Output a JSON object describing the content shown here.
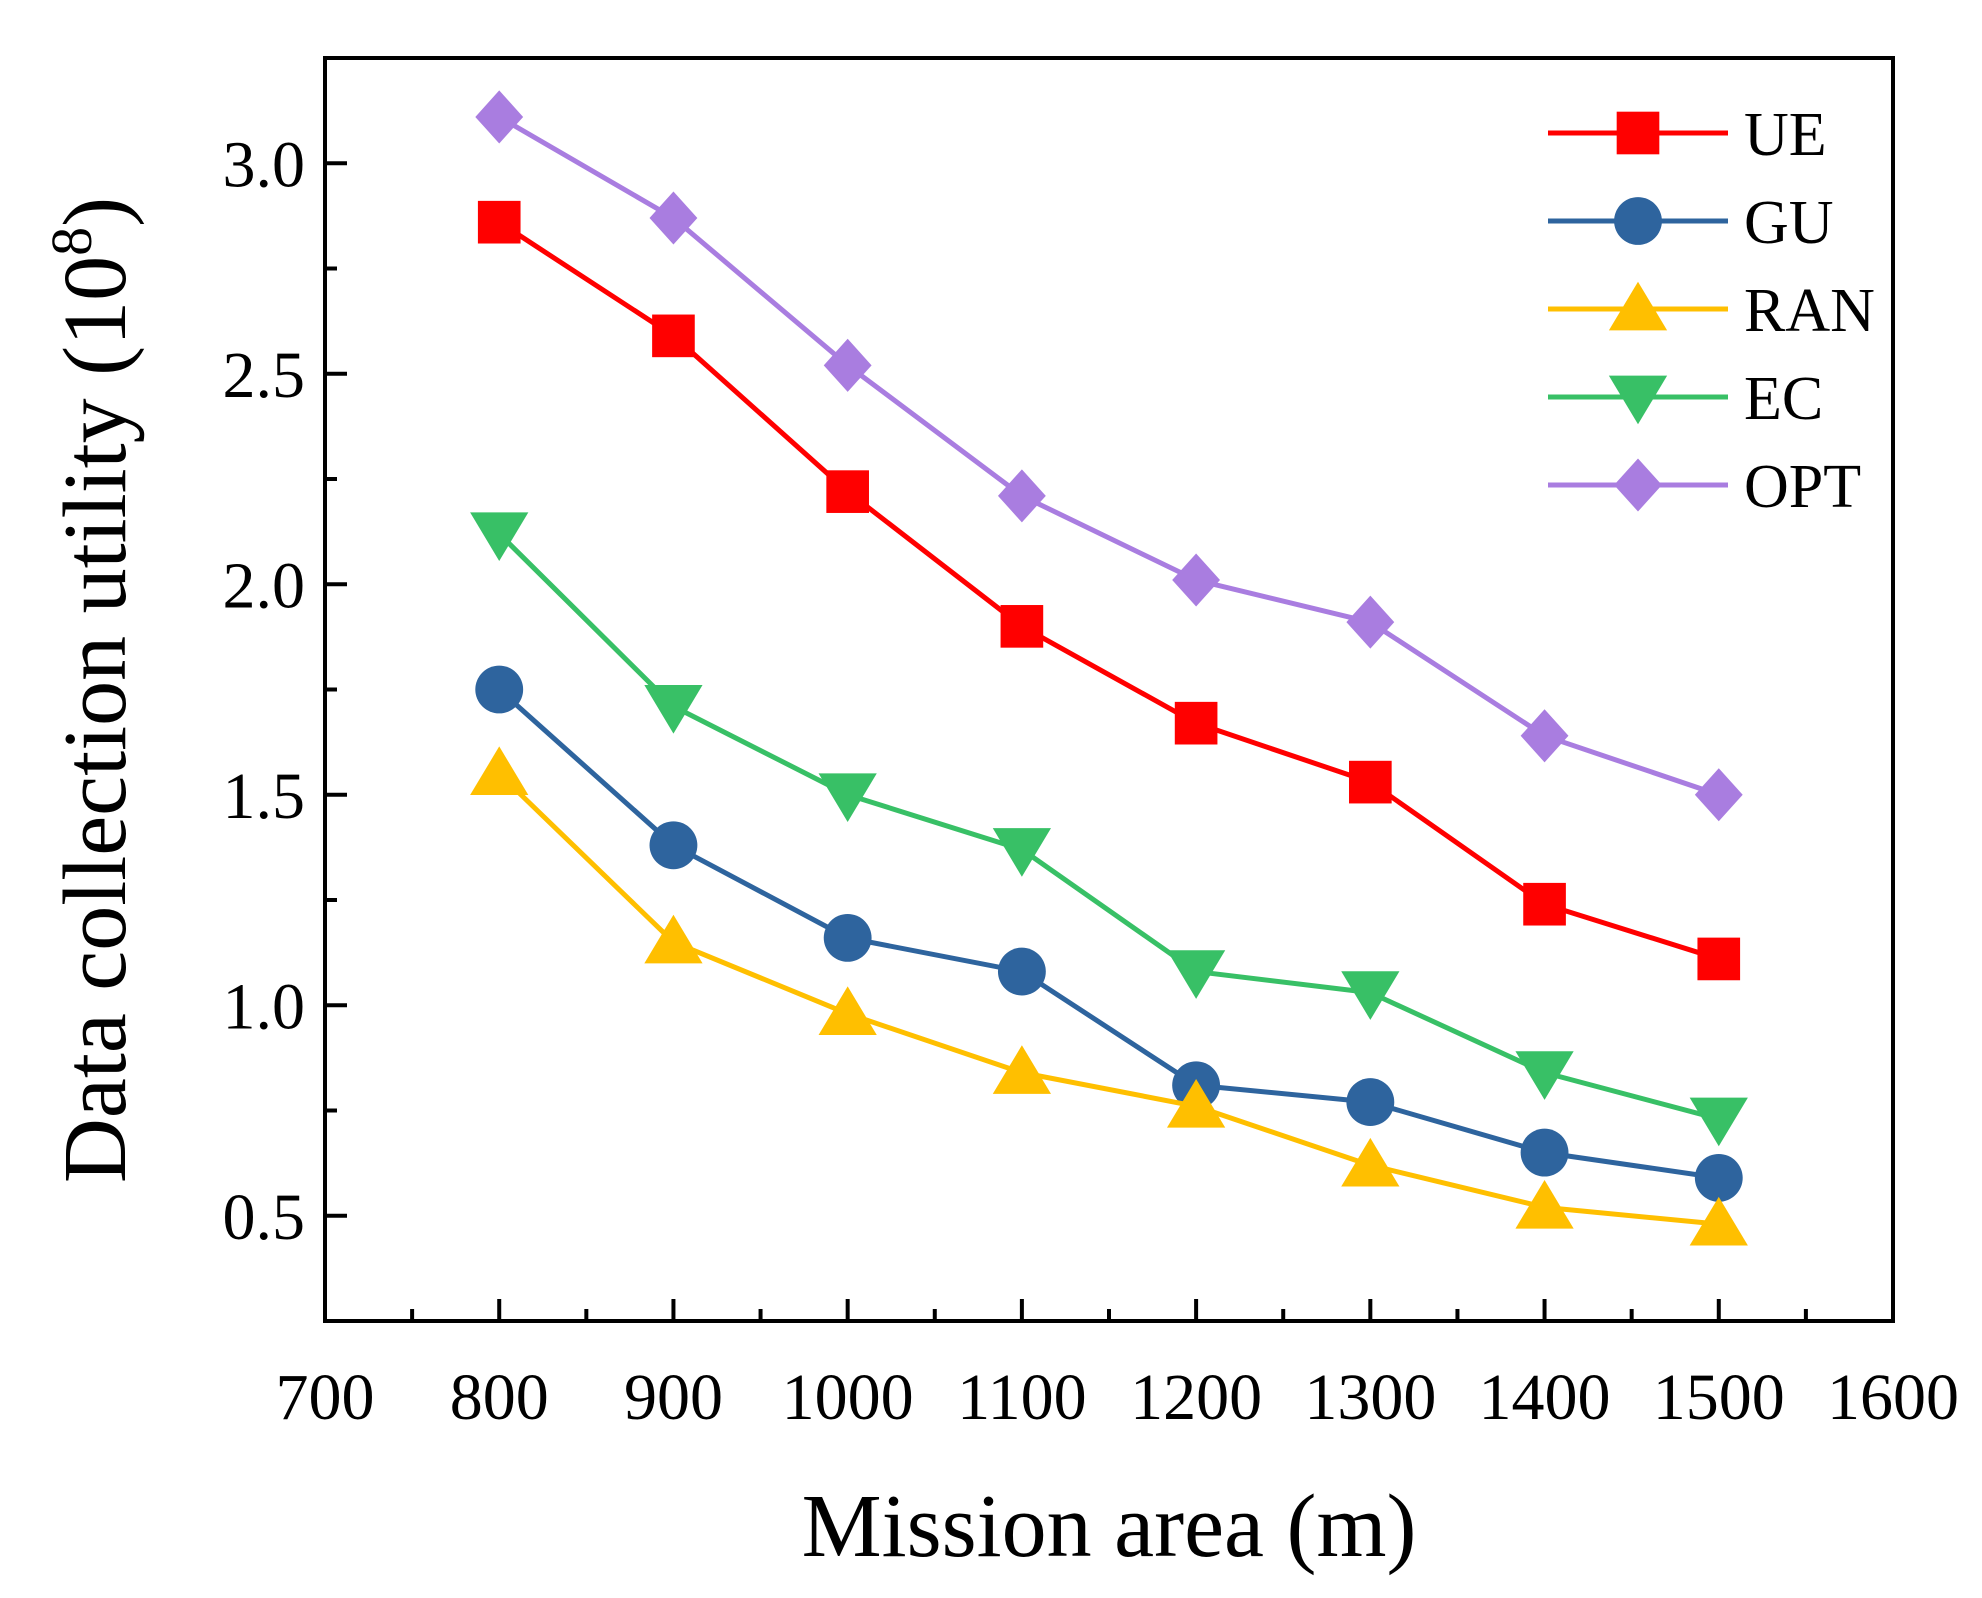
{
  "chart_data": {
    "type": "line",
    "title": "",
    "xlabel": "Mission area (m)",
    "ylabel": {
      "main": "Data collection utility (10",
      "sup": "8",
      "close": ")"
    },
    "xlim": [
      700,
      1600
    ],
    "ylim": [
      0.25,
      3.25
    ],
    "x_ticks": [
      700,
      800,
      900,
      1000,
      1100,
      1200,
      1300,
      1400,
      1500,
      1600
    ],
    "x_tick_labels": [
      "700",
      "800",
      "900",
      "1000",
      "1100",
      "1200",
      "1300",
      "1400",
      "1500",
      "1600"
    ],
    "y_ticks": [
      0.5,
      1.0,
      1.5,
      2.0,
      2.5,
      3.0
    ],
    "y_tick_labels": [
      "0.5",
      "1.0",
      "1.5",
      "2.0",
      "2.5",
      "3.0"
    ],
    "x": [
      800,
      900,
      1000,
      1100,
      1200,
      1300,
      1400,
      1500
    ],
    "legend_position": "top-right",
    "series": [
      {
        "name": "UE",
        "color": "#ff0000",
        "marker": "square",
        "values": [
          2.86,
          2.59,
          2.22,
          1.9,
          1.67,
          1.53,
          1.24,
          1.11
        ]
      },
      {
        "name": "GU",
        "color": "#2e649e",
        "marker": "circle",
        "values": [
          1.75,
          1.38,
          1.16,
          1.08,
          0.81,
          0.77,
          0.65,
          0.59
        ]
      },
      {
        "name": "RAN",
        "color": "#ffbf00",
        "marker": "triangle-up",
        "values": [
          1.55,
          1.15,
          0.98,
          0.84,
          0.76,
          0.62,
          0.52,
          0.48
        ]
      },
      {
        "name": "EC",
        "color": "#38c066",
        "marker": "triangle-down",
        "values": [
          2.12,
          1.71,
          1.5,
          1.37,
          1.08,
          1.03,
          0.84,
          0.73
        ]
      },
      {
        "name": "OPT",
        "color": "#a97de0",
        "marker": "diamond",
        "values": [
          3.11,
          2.87,
          2.52,
          2.21,
          2.01,
          1.91,
          1.64,
          1.5
        ]
      }
    ]
  }
}
